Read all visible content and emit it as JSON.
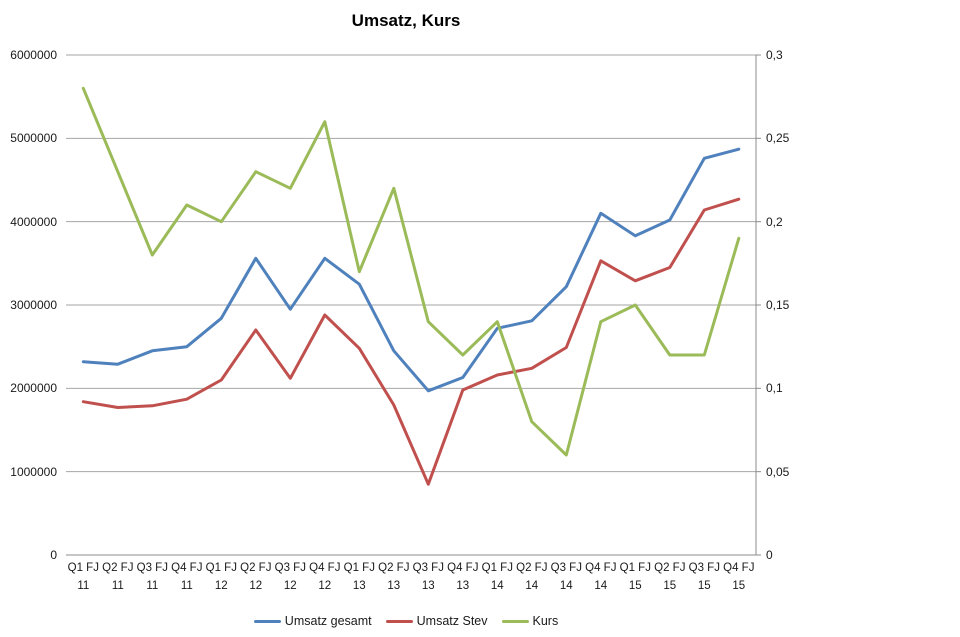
{
  "chart": {
    "title": "Umsatz, Kurs"
  },
  "colors": {
    "background": "#ffffff",
    "gridline": "#a6a6a6",
    "axis_line": "#8c8c8c",
    "text": "#1a1a1a",
    "series_blue": "#4F81BD",
    "series_red": "#C0504D",
    "series_green": "#9BBB59"
  },
  "chart_data": {
    "type": "line",
    "title": "Umsatz, Kurs",
    "categories": [
      "Q1 FJ 11",
      "Q2 FJ 11",
      "Q3 FJ 11",
      "Q4 FJ 11",
      "Q1 FJ 12",
      "Q2 FJ 12",
      "Q3 FJ 12",
      "Q4 FJ 12",
      "Q1 FJ 13",
      "Q2 FJ 13",
      "Q3 FJ 13",
      "Q4 FJ 13",
      "Q1 FJ 14",
      "Q2 FJ 14",
      "Q3 FJ 14",
      "Q4 FJ 14",
      "Q1 FJ 15",
      "Q2 FJ 15",
      "Q3 FJ 15",
      "Q4 FJ 15"
    ],
    "series": [
      {
        "name": "Umsatz gesamt",
        "color": "#4F81BD",
        "axis": "left",
        "values": [
          2320000,
          2290000,
          2450000,
          2500000,
          2840000,
          3560000,
          2950000,
          3560000,
          3250000,
          2450000,
          1970000,
          2130000,
          2720000,
          2810000,
          3220000,
          4100000,
          3830000,
          4020000,
          4760000,
          4870000
        ]
      },
      {
        "name": "Umsatz Stev",
        "color": "#C0504D",
        "axis": "left",
        "values": [
          1840000,
          1770000,
          1790000,
          1870000,
          2100000,
          2700000,
          2120000,
          2880000,
          2480000,
          1800000,
          850000,
          1980000,
          2160000,
          2240000,
          2490000,
          3530000,
          3290000,
          3450000,
          4140000,
          4270000
        ]
      },
      {
        "name": "Kurs",
        "color": "#9BBB59",
        "axis": "right",
        "values": [
          0.28,
          0.23,
          0.18,
          0.21,
          0.2,
          0.23,
          0.22,
          0.26,
          0.17,
          0.22,
          0.14,
          0.12,
          0.14,
          0.08,
          0.06,
          0.14,
          0.15,
          0.12,
          0.12,
          0.19
        ]
      }
    ],
    "left_axis": {
      "min": 0,
      "max": 6000000,
      "tick_labels": [
        "0",
        "1000000",
        "2000000",
        "3000000",
        "4000000",
        "5000000",
        "6000000"
      ]
    },
    "right_axis": {
      "min": 0,
      "max": 0.3,
      "tick_labels": [
        "0",
        "0,05",
        "0,1",
        "0,15",
        "0,2",
        "0,25",
        "0,3"
      ]
    },
    "grid": true,
    "legend_position": "bottom"
  }
}
